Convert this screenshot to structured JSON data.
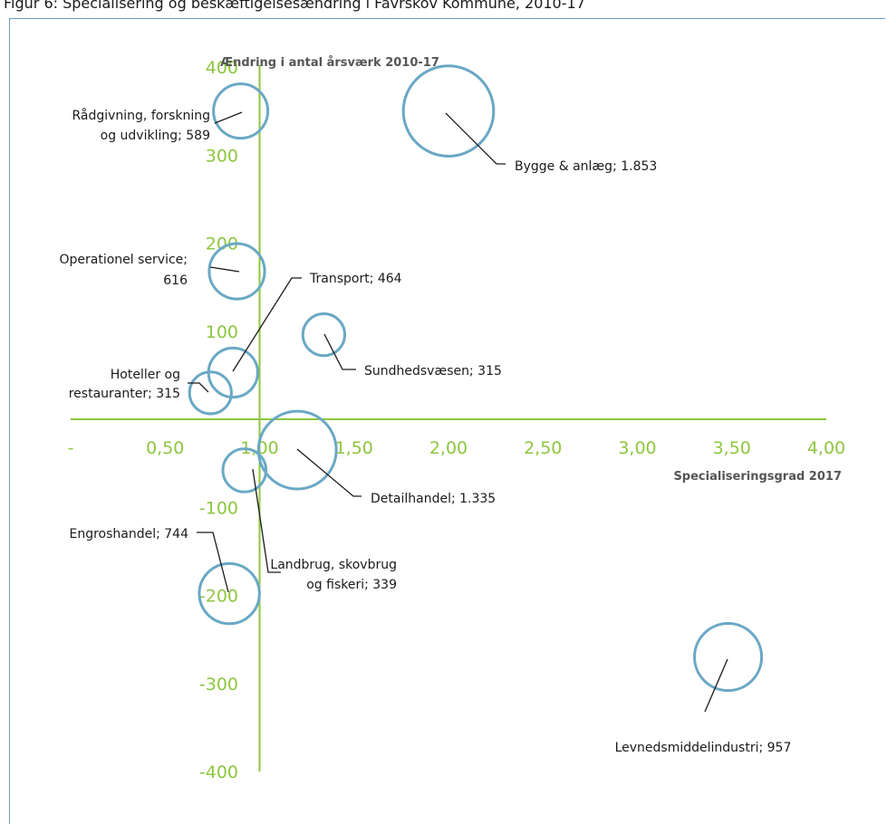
{
  "header": {
    "text": "Figur 6: Specialisering og beskæftigelsesændring i Favrskov Kommune, 2010-17"
  },
  "chart_data": {
    "type": "scatter",
    "title": "",
    "xlabel": "Specialiseringsgrad 2017",
    "ylabel": "Ændring i antal årsværk 2010-17",
    "xlim": [
      0,
      4
    ],
    "ylim": [
      -400,
      400
    ],
    "x_ticks": [
      "-",
      "0,50",
      "1,00",
      "1,50",
      "2,00",
      "2,50",
      "3,00",
      "3,50",
      "4,00"
    ],
    "y_ticks": [
      "400",
      "300",
      "200",
      "100",
      "-100",
      "-200",
      "-300",
      "-400"
    ],
    "grid": false,
    "colors": {
      "bubble": "#6aa8c4",
      "axis": "#8dc63f",
      "frame": "#6a9ec4"
    },
    "series": [
      {
        "label": [
          "Bygge & anlæg;  1.853"
        ],
        "x": 2.0,
        "y": 350,
        "size": 1853
      },
      {
        "label": [
          "Rådgivning, forskning",
          "og udvikling;  589"
        ],
        "x": 0.9,
        "y": 350,
        "size": 589
      },
      {
        "label": [
          "Operationel service;",
          "616"
        ],
        "x": 0.88,
        "y": 168,
        "size": 616
      },
      {
        "label": [
          "Transport;  464"
        ],
        "x": 0.86,
        "y": 53,
        "size": 464
      },
      {
        "label": [
          "Sundhedsvæsen;  315"
        ],
        "x": 1.34,
        "y": 96,
        "size": 315
      },
      {
        "label": [
          "Hoteller og",
          "restauranter;  315"
        ],
        "x": 0.74,
        "y": 30,
        "size": 315
      },
      {
        "label": [
          "Detailhandel;  1.335"
        ],
        "x": 1.2,
        "y": -35,
        "size": 1335
      },
      {
        "label": [
          "Landbrug, skovbrug",
          "og fiskeri;  339"
        ],
        "x": 0.92,
        "y": -58,
        "size": 339
      },
      {
        "label": [
          "Engroshandel;  744"
        ],
        "x": 0.84,
        "y": -198,
        "size": 744
      },
      {
        "label": [
          "Levnedsmiddelindustri;  957"
        ],
        "x": 3.48,
        "y": -270,
        "size": 957
      }
    ]
  }
}
